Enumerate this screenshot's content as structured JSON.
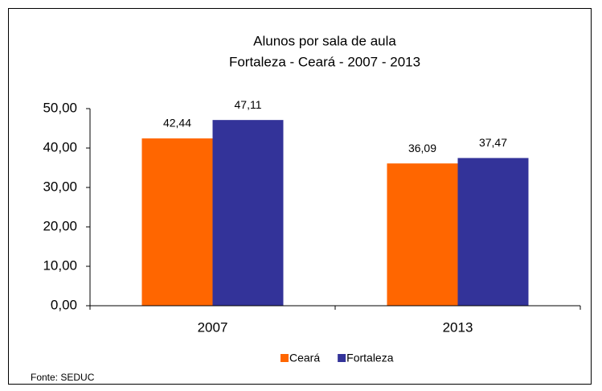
{
  "chart_data": {
    "type": "bar",
    "title": "Alunos por sala de aula",
    "subtitle": "Fortaleza - Ceará - 2007 - 2013",
    "categories": [
      "2007",
      "2013"
    ],
    "series": [
      {
        "name": "Ceará",
        "color": "#ff6600",
        "values": [
          42.44,
          36.09
        ],
        "value_labels": [
          "42,44",
          "36,09"
        ]
      },
      {
        "name": "Fortaleza",
        "color": "#333399",
        "values": [
          47.11,
          37.47
        ],
        "value_labels": [
          "47,11",
          "37,47"
        ]
      }
    ],
    "ylim": [
      0,
      50
    ],
    "yticks": [
      {
        "value": 0,
        "label": "0,00"
      },
      {
        "value": 10,
        "label": "10,00"
      },
      {
        "value": 20,
        "label": "20,00"
      },
      {
        "value": 30,
        "label": "30,00"
      },
      {
        "value": 40,
        "label": "40,00"
      },
      {
        "value": 50,
        "label": "50,00"
      }
    ],
    "legend": "bottom",
    "source": "Fonte: SEDUC"
  }
}
